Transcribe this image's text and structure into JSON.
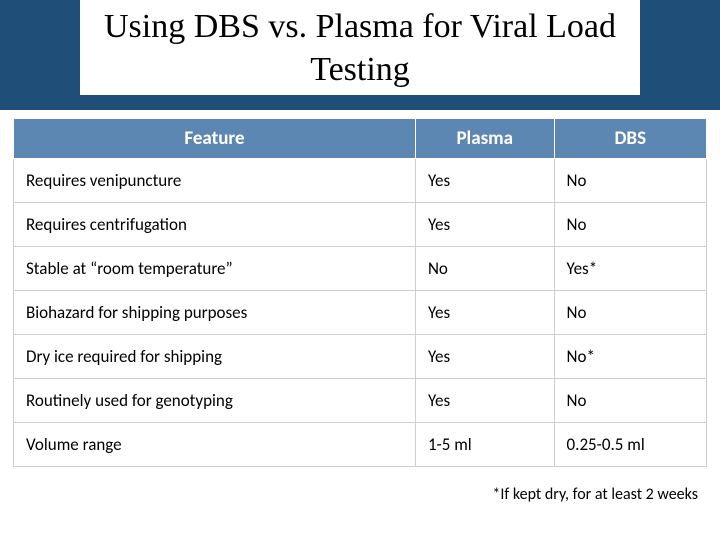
{
  "title": "Using DBS vs. Plasma for Viral Load Testing",
  "colors": {
    "band_bg": "#1f4e79",
    "header_bg": "#5b87b2",
    "header_fg": "#ffffff",
    "cell_border": "#cfcfcf",
    "text": "#000000",
    "page_bg": "#ffffff"
  },
  "table": {
    "columns": [
      "Feature",
      "Plasma",
      "DBS"
    ],
    "column_widths_pct": [
      58,
      20,
      22
    ],
    "header_fontsize": 19,
    "cell_fontsize": 17,
    "rows": [
      {
        "feature": "Requires venipuncture",
        "plasma": "Yes",
        "dbs": "No"
      },
      {
        "feature": "Requires centrifugation",
        "plasma": "Yes",
        "dbs": "No"
      },
      {
        "feature": "Stable at “room temperature”",
        "plasma": "No",
        "dbs": "Yes*"
      },
      {
        "feature": "Biohazard for shipping purposes",
        "plasma": "Yes",
        "dbs": "No"
      },
      {
        "feature": "Dry ice required for shipping",
        "plasma": "Yes",
        "dbs": "No*"
      },
      {
        "feature": "Routinely used for genotyping",
        "plasma": "Yes",
        "dbs": "No"
      },
      {
        "feature": "Volume range",
        "plasma": "1-5 ml",
        "dbs": "0.25-0.5 ml"
      }
    ]
  },
  "footnote": "*If kept dry, for at least 2 weeks"
}
